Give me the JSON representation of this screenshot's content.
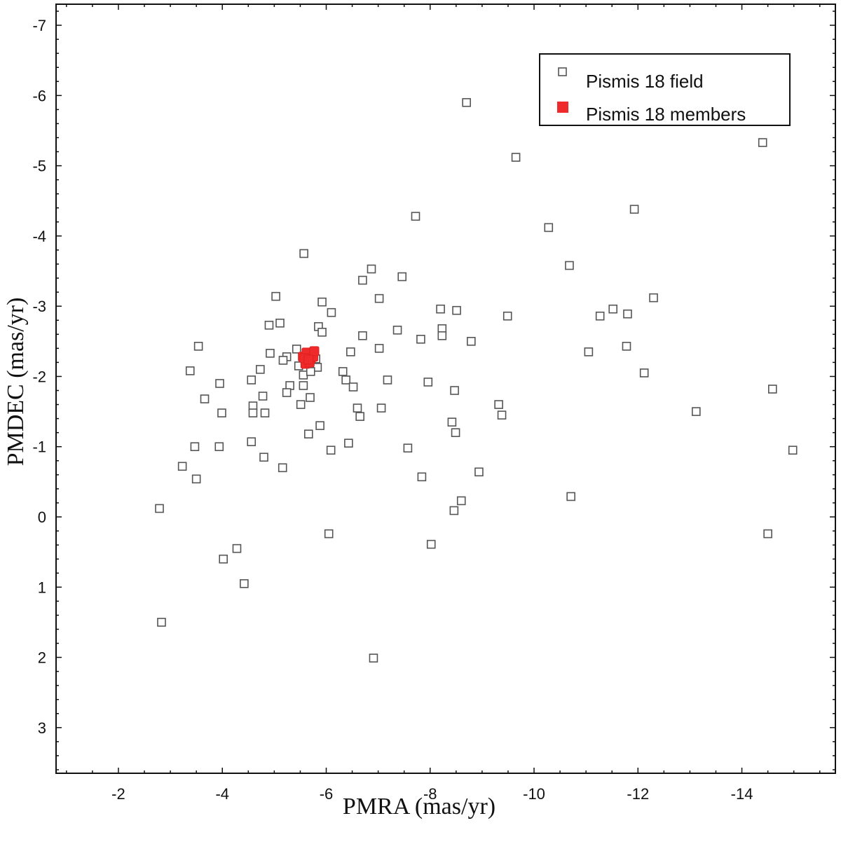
{
  "chart_data": {
    "type": "scatter",
    "xlabel": "PMRA (mas/yr)",
    "ylabel": "PMDEC (mas/yr)",
    "xlim": [
      -0.8,
      -15.8
    ],
    "ylim": [
      3.65,
      -7.3
    ],
    "x_ticks": [
      -2,
      -4,
      -6,
      -8,
      -10,
      -12,
      -14
    ],
    "x_tick_labels": [
      "-2",
      "-4",
      "-6",
      "-8",
      "-10",
      "-12",
      "-14"
    ],
    "y_ticks": [
      -7,
      -6,
      -5,
      -4,
      -3,
      -2,
      -1,
      0,
      1,
      2,
      3
    ],
    "y_tick_labels": [
      "-7",
      "-6",
      "-5",
      "-4",
      "-3",
      "-2",
      "-1",
      "0",
      "1",
      "2",
      "3"
    ],
    "grid": false,
    "legend_position": "top-right",
    "colors": {
      "field": "#555555",
      "members": "#ee2a2a"
    },
    "series": [
      {
        "name": "Pismis 18 field",
        "marker": "open-square",
        "points": [
          [
            -8.7,
            -5.9
          ],
          [
            -9.65,
            -5.12
          ],
          [
            -14.4,
            -5.33
          ],
          [
            -11.93,
            -4.38
          ],
          [
            -7.72,
            -4.28
          ],
          [
            -10.28,
            -4.12
          ],
          [
            -10.68,
            -3.58
          ],
          [
            -5.57,
            -3.75
          ],
          [
            -6.87,
            -3.53
          ],
          [
            -7.46,
            -3.42
          ],
          [
            -6.7,
            -3.37
          ],
          [
            -5.03,
            -3.14
          ],
          [
            -7.02,
            -3.11
          ],
          [
            -12.3,
            -3.12
          ],
          [
            -5.92,
            -3.06
          ],
          [
            -8.2,
            -2.96
          ],
          [
            -8.51,
            -2.94
          ],
          [
            -11.52,
            -2.96
          ],
          [
            -6.1,
            -2.91
          ],
          [
            -9.49,
            -2.86
          ],
          [
            -11.27,
            -2.86
          ],
          [
            -11.8,
            -2.89
          ],
          [
            -5.11,
            -2.76
          ],
          [
            -4.9,
            -2.73
          ],
          [
            -5.85,
            -2.71
          ],
          [
            -5.92,
            -2.63
          ],
          [
            -7.37,
            -2.66
          ],
          [
            -8.23,
            -2.68
          ],
          [
            -8.23,
            -2.58
          ],
          [
            -6.7,
            -2.58
          ],
          [
            -7.82,
            -2.53
          ],
          [
            -8.79,
            -2.5
          ],
          [
            -3.54,
            -2.43
          ],
          [
            -11.78,
            -2.43
          ],
          [
            -7.02,
            -2.4
          ],
          [
            -11.05,
            -2.35
          ],
          [
            -4.92,
            -2.33
          ],
          [
            -5.43,
            -2.39
          ],
          [
            -6.47,
            -2.35
          ],
          [
            -5.24,
            -2.28
          ],
          [
            -5.17,
            -2.23
          ],
          [
            -5.8,
            -2.25
          ],
          [
            -5.65,
            -2.2
          ],
          [
            -5.83,
            -2.13
          ],
          [
            -5.47,
            -2.15
          ],
          [
            -4.73,
            -2.1
          ],
          [
            -3.38,
            -2.08
          ],
          [
            -6.32,
            -2.07
          ],
          [
            -12.12,
            -2.05
          ],
          [
            -5.56,
            -2.02
          ],
          [
            -5.7,
            -2.07
          ],
          [
            -4.56,
            -1.95
          ],
          [
            -6.38,
            -1.95
          ],
          [
            -7.18,
            -1.95
          ],
          [
            -7.96,
            -1.92
          ],
          [
            -3.95,
            -1.9
          ],
          [
            -5.56,
            -1.87
          ],
          [
            -5.3,
            -1.87
          ],
          [
            -6.52,
            -1.85
          ],
          [
            -8.47,
            -1.8
          ],
          [
            -14.59,
            -1.82
          ],
          [
            -5.24,
            -1.77
          ],
          [
            -4.78,
            -1.72
          ],
          [
            -5.69,
            -1.7
          ],
          [
            -3.66,
            -1.68
          ],
          [
            -5.51,
            -1.6
          ],
          [
            -9.32,
            -1.6
          ],
          [
            -4.59,
            -1.58
          ],
          [
            -6.6,
            -1.55
          ],
          [
            -7.06,
            -1.55
          ],
          [
            -4.59,
            -1.48
          ],
          [
            -4.82,
            -1.48
          ],
          [
            -3.99,
            -1.48
          ],
          [
            -13.12,
            -1.5
          ],
          [
            -6.65,
            -1.43
          ],
          [
            -9.38,
            -1.45
          ],
          [
            -8.42,
            -1.35
          ],
          [
            -5.88,
            -1.3
          ],
          [
            -8.49,
            -1.2
          ],
          [
            -5.66,
            -1.18
          ],
          [
            -4.56,
            -1.07
          ],
          [
            -6.43,
            -1.05
          ],
          [
            -3.47,
            -1.0
          ],
          [
            -3.94,
            -1.0
          ],
          [
            -7.57,
            -0.98
          ],
          [
            -6.09,
            -0.95
          ],
          [
            -14.98,
            -0.95
          ],
          [
            -4.8,
            -0.85
          ],
          [
            -3.23,
            -0.72
          ],
          [
            -5.16,
            -0.7
          ],
          [
            -8.94,
            -0.64
          ],
          [
            -3.5,
            -0.54
          ],
          [
            -7.84,
            -0.57
          ],
          [
            -10.71,
            -0.29
          ],
          [
            -8.6,
            -0.23
          ],
          [
            -2.79,
            -0.12
          ],
          [
            -8.46,
            -0.09
          ],
          [
            -6.05,
            0.24
          ],
          [
            -14.5,
            0.24
          ],
          [
            -8.02,
            0.39
          ],
          [
            -4.28,
            0.45
          ],
          [
            -4.02,
            0.6
          ],
          [
            -4.42,
            0.95
          ],
          [
            -2.83,
            1.5
          ],
          [
            -6.91,
            2.01
          ]
        ]
      },
      {
        "name": "Pismis 18 members",
        "marker": "filled-square",
        "points": [
          [
            -5.55,
            -2.28
          ],
          [
            -5.6,
            -2.22
          ],
          [
            -5.65,
            -2.3
          ],
          [
            -5.7,
            -2.25
          ],
          [
            -5.6,
            -2.18
          ],
          [
            -5.72,
            -2.32
          ],
          [
            -5.68,
            -2.2
          ],
          [
            -5.75,
            -2.28
          ],
          [
            -5.62,
            -2.34
          ],
          [
            -5.58,
            -2.26
          ],
          [
            -5.77,
            -2.36
          ],
          [
            -5.66,
            -2.24
          ]
        ]
      }
    ]
  }
}
